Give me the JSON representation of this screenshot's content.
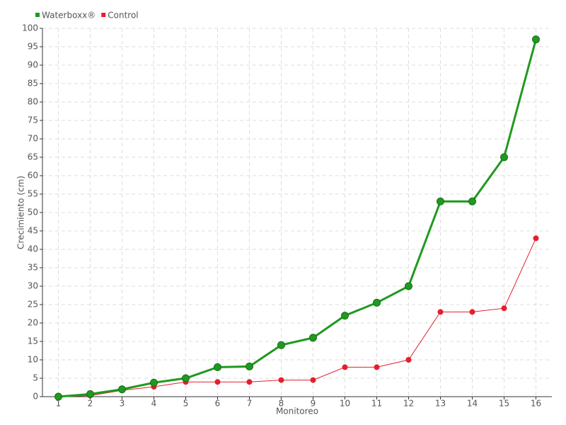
{
  "chart_data": {
    "type": "line",
    "x_label": "Monitoreo",
    "y_label": "Crecimiento (cm)",
    "categories": [
      "1",
      "2",
      "3",
      "4",
      "5",
      "6",
      "7",
      "8",
      "9",
      "10",
      "11",
      "12",
      "13",
      "14",
      "15",
      "16"
    ],
    "series": [
      {
        "name": "Waterboxx®",
        "color": "#1f9a1f",
        "values": [
          0,
          0.7,
          2,
          3.8,
          5,
          8,
          8.2,
          14,
          16,
          22,
          25.5,
          30,
          53,
          53,
          65,
          97
        ]
      },
      {
        "name": "Control",
        "color": "#e41f2d",
        "values": [
          0,
          0.3,
          1.7,
          2.7,
          4,
          4,
          4,
          4.5,
          4.5,
          8,
          8,
          10,
          23,
          23,
          24,
          43
        ]
      }
    ],
    "ylim": [
      0,
      100
    ],
    "yticks": [
      0,
      5,
      10,
      15,
      20,
      25,
      30,
      35,
      40,
      45,
      50,
      55,
      60,
      65,
      70,
      75,
      80,
      85,
      90,
      95,
      100
    ],
    "grid": true,
    "legend": "top-left"
  }
}
